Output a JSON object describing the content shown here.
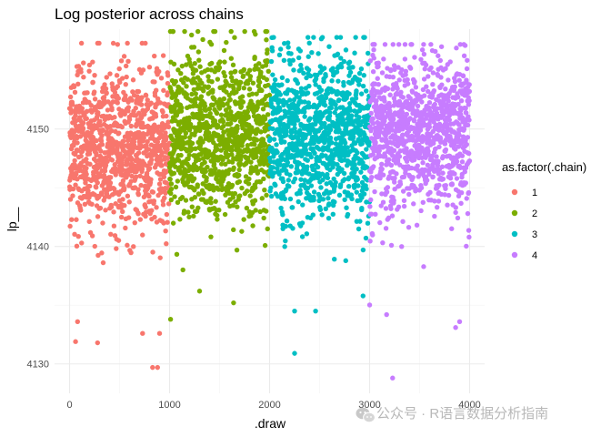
{
  "chart_data": {
    "type": "scatter",
    "title": "Log posterior across chains",
    "xlabel": ".draw",
    "ylabel": "lp__",
    "xlim": [
      -150,
      4150
    ],
    "ylim": [
      4127.5,
      4158.5
    ],
    "xticks": [
      0,
      1000,
      2000,
      3000,
      4000
    ],
    "yticks": [
      4130,
      4140,
      4150
    ],
    "grid": true,
    "legend": {
      "title": "as.factor(.chain)",
      "placement": "right",
      "entries": [
        "1",
        "2",
        "3",
        "4"
      ]
    },
    "series": [
      {
        "name": "1",
        "color": "#F8766D",
        "x_range": [
          0,
          1000
        ],
        "n_points": 1000,
        "y_summary": {
          "center": 4148.5,
          "spread": 3.5,
          "min": 4129.7,
          "max": 4157.3
        },
        "notable_points": [
          {
            "x": 830,
            "y": 4129.7
          },
          {
            "x": 880,
            "y": 4129.7
          },
          {
            "x": 60,
            "y": 4131.9
          },
          {
            "x": 280,
            "y": 4131.8
          },
          {
            "x": 80,
            "y": 4133.6
          },
          {
            "x": 730,
            "y": 4132.6
          },
          {
            "x": 900,
            "y": 4132.6
          },
          {
            "x": 480,
            "y": 4157.2
          }
        ]
      },
      {
        "name": "2",
        "color": "#7CAE00",
        "x_range": [
          1000,
          2000
        ],
        "n_points": 1000,
        "y_summary": {
          "center": 4149.5,
          "spread": 3.5,
          "min": 4133.8,
          "max": 4158.3
        },
        "notable_points": [
          {
            "x": 1010,
            "y": 4133.8
          },
          {
            "x": 1640,
            "y": 4135.2
          },
          {
            "x": 1300,
            "y": 4136.2
          },
          {
            "x": 1440,
            "y": 4158.3
          },
          {
            "x": 1220,
            "y": 4158.0
          }
        ]
      },
      {
        "name": "3",
        "color": "#00BFC4",
        "x_range": [
          2000,
          3000
        ],
        "n_points": 1000,
        "y_summary": {
          "center": 4149.5,
          "spread": 3.5,
          "min": 4130.9,
          "max": 4157.8
        },
        "notable_points": [
          {
            "x": 2250,
            "y": 4130.9
          },
          {
            "x": 2460,
            "y": 4134.5
          },
          {
            "x": 2250,
            "y": 4134.5
          },
          {
            "x": 2940,
            "y": 4157.8
          }
        ]
      },
      {
        "name": "4",
        "color": "#C77CFF",
        "x_range": [
          3000,
          4000
        ],
        "n_points": 1000,
        "y_summary": {
          "center": 4149.5,
          "spread": 3.5,
          "min": 4128.8,
          "max": 4157.2
        },
        "notable_points": [
          {
            "x": 3230,
            "y": 4128.8
          },
          {
            "x": 3860,
            "y": 4133.1
          },
          {
            "x": 3900,
            "y": 4133.6
          },
          {
            "x": 3170,
            "y": 4134.2
          },
          {
            "x": 3540,
            "y": 4157.2
          }
        ]
      }
    ]
  },
  "watermark": {
    "text": "公众号 · R语言数据分析指南",
    "icon": "wechat-icon"
  }
}
